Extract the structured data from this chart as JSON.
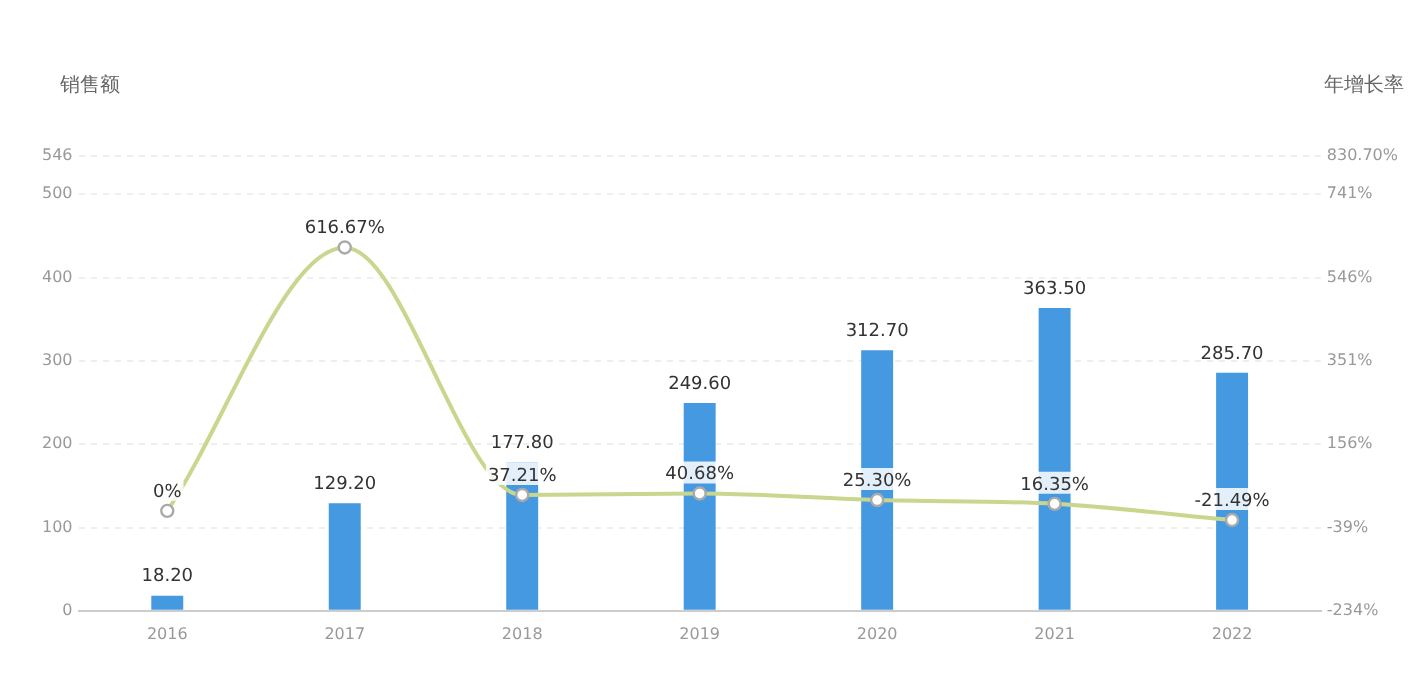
{
  "chart_data": {
    "type": "bar",
    "ylabel": "销售额",
    "y2label": "年增长率",
    "categories": [
      "2016",
      "2017",
      "2018",
      "2019",
      "2020",
      "2021",
      "2022"
    ],
    "series": [
      {
        "color": "#4599e0",
        "values": [
          18.2,
          129.2,
          177.8,
          249.6,
          312.7,
          363.5,
          285.7
        ],
        "value_labels": [
          "18.20",
          "129.20",
          "177.80",
          "249.60",
          "312.70",
          "363.50",
          "285.70"
        ]
      },
      {
        "type": "line",
        "axis": "y2",
        "color": "#c8d68e",
        "values": [
          0,
          616.67,
          37.21,
          40.68,
          25.3,
          16.35,
          -21.49
        ],
        "value_labels": [
          "0%",
          "616.67%",
          "37.21%",
          "40.68%",
          "25.30%",
          "16.35%",
          "-21.49%"
        ]
      }
    ],
    "ylim": [
      0,
      546
    ],
    "yticks": [
      0,
      100,
      200,
      300,
      400,
      500,
      546
    ],
    "y2lim": [
      -234,
      830.7
    ],
    "y2ticks": [
      {
        "value": -234,
        "label": "-234%"
      },
      {
        "value": -39,
        "label": "-39%"
      },
      {
        "value": 156,
        "label": "156%"
      },
      {
        "value": 351,
        "label": "351%"
      },
      {
        "value": 546,
        "label": "546%"
      },
      {
        "value": 741,
        "label": "741%"
      },
      {
        "value": 830.7,
        "label": "830.70%"
      }
    ],
    "grid": "y",
    "legend": false,
    "marker": "circle",
    "line_style": "solid"
  }
}
